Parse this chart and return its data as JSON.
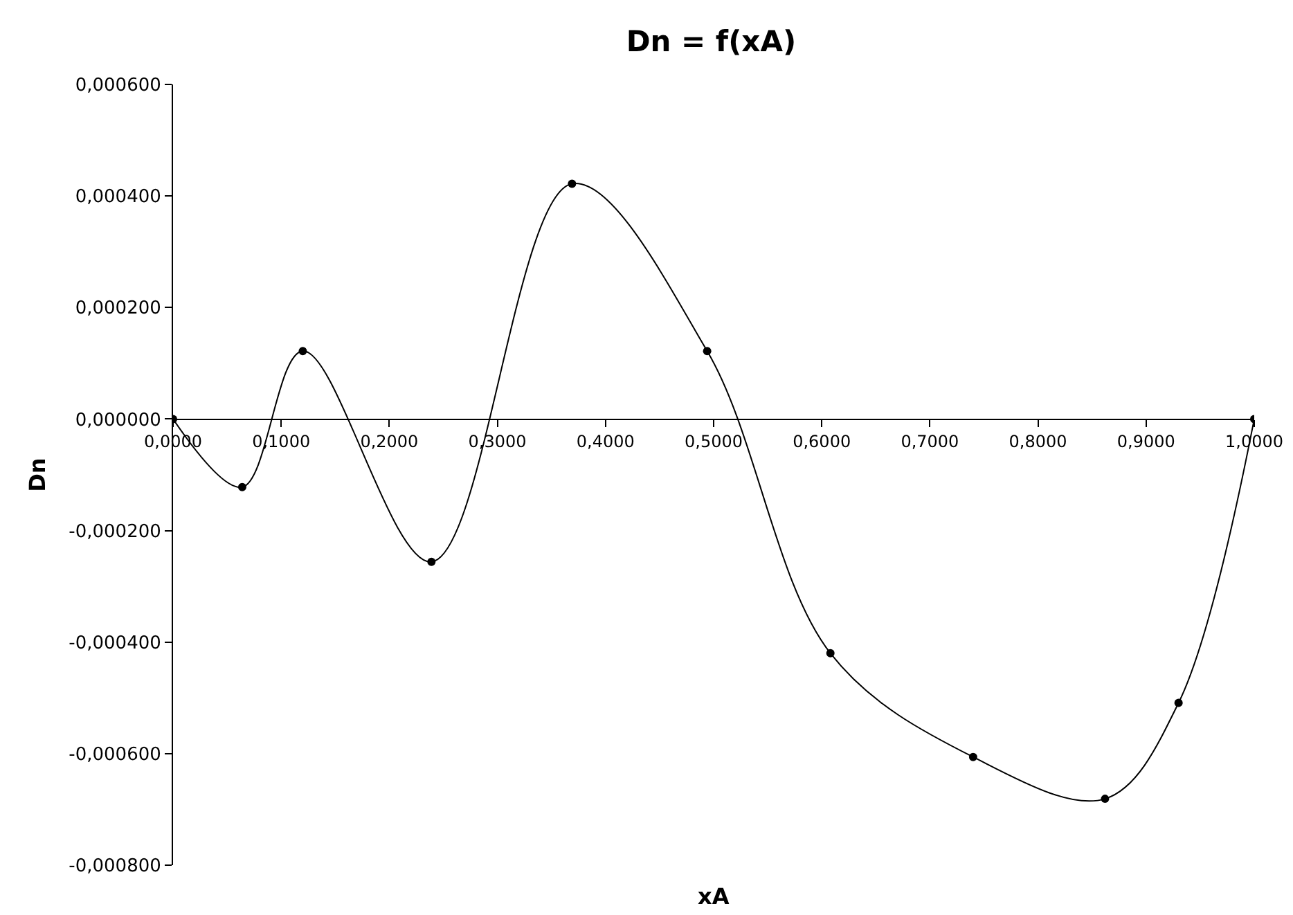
{
  "chart_data": {
    "type": "line",
    "title": "Dn = f(xA)",
    "xlabel": "xA",
    "ylabel": "Dn",
    "x": [
      0,
      0.064,
      0.12,
      0.239,
      0.369,
      0.494,
      0.608,
      0.74,
      0.862,
      0.93,
      1.0
    ],
    "series": [
      {
        "color": "#000000",
        "values": [
          0,
          -0.000122,
          0.000122,
          -0.000256,
          0.000422,
          0.000122,
          -0.00042,
          -0.000606,
          -0.000681,
          -0.000509,
          0
        ]
      }
    ],
    "xlim": [
      0,
      1
    ],
    "xticks": [
      {
        "value": 0,
        "label": "0,0000"
      },
      {
        "value": 0.1,
        "label": "0,1000"
      },
      {
        "value": 0.2,
        "label": "0,2000"
      },
      {
        "value": 0.3,
        "label": "0,3000"
      },
      {
        "value": 0.4,
        "label": "0,4000"
      },
      {
        "value": 0.5,
        "label": "0,5000"
      },
      {
        "value": 0.6,
        "label": "0,6000"
      },
      {
        "value": 0.7,
        "label": "0,7000"
      },
      {
        "value": 0.8,
        "label": "0,8000"
      },
      {
        "value": 0.9,
        "label": "0,9000"
      },
      {
        "value": 1,
        "label": "1,0000"
      }
    ],
    "ylim": [
      -0.0008,
      0.0006
    ],
    "yticks": [
      {
        "value": -0.0008,
        "label": "-0,000800"
      },
      {
        "value": -0.0006,
        "label": "-0,000600"
      },
      {
        "value": -0.0004,
        "label": "-0,000400"
      },
      {
        "value": -0.0002,
        "label": "-0,000200"
      },
      {
        "value": 0,
        "label": "0,000000"
      },
      {
        "value": 0.0002,
        "label": "0,000200"
      },
      {
        "value": 0.0004,
        "label": "0,000400"
      },
      {
        "value": 0.0006,
        "label": "0,000600"
      }
    ],
    "grid": false,
    "marker": "circle",
    "line_style": "solid"
  }
}
